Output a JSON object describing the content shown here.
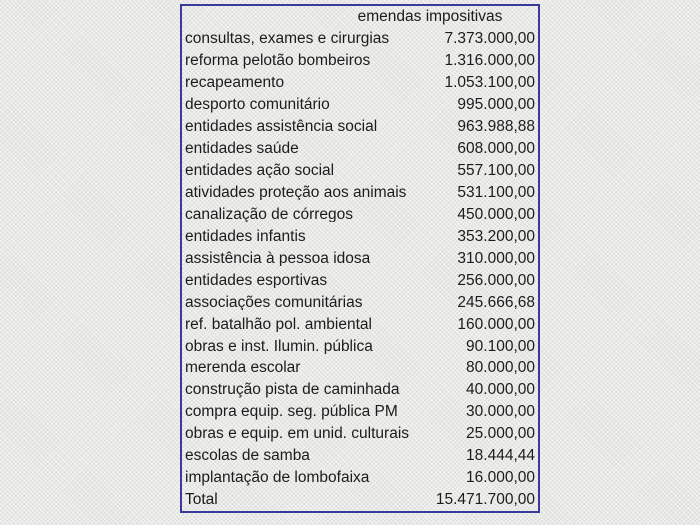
{
  "table": {
    "header": "emendas impositivas",
    "rows": [
      {
        "label": "consultas, exames e cirurgias",
        "value": "7.373.000,00"
      },
      {
        "label": "reforma pelotão bombeiros",
        "value": "1.316.000,00"
      },
      {
        "label": "recapeamento",
        "value": "1.053.100,00"
      },
      {
        "label": "desporto comunitário",
        "value": "995.000,00"
      },
      {
        "label": "entidades assistência social",
        "value": "963.988,88"
      },
      {
        "label": "entidades saúde",
        "value": "608.000,00"
      },
      {
        "label": "entidades ação social",
        "value": "557.100,00"
      },
      {
        "label": "atividades proteção aos animais",
        "value": "531.100,00"
      },
      {
        "label": "canalização de córregos",
        "value": "450.000,00"
      },
      {
        "label": "entidades infantis",
        "value": "353.200,00"
      },
      {
        "label": "assistência à pessoa idosa",
        "value": "310.000,00"
      },
      {
        "label": "entidades esportivas",
        "value": "256.000,00"
      },
      {
        "label": "associações comunitárias",
        "value": "245.666,68"
      },
      {
        "label": "ref. batalhão pol. ambiental",
        "value": "160.000,00"
      },
      {
        "label": "obras e inst. Ilumin. pública",
        "value": "90.100,00"
      },
      {
        "label": "merenda escolar",
        "value": "80.000,00"
      },
      {
        "label": "construção pista de caminhada",
        "value": "40.000,00"
      },
      {
        "label": "compra equip. seg. pública PM",
        "value": "30.000,00"
      },
      {
        "label": "obras e equip. em unid. culturais",
        "value": "25.000,00"
      },
      {
        "label": "escolas de samba",
        "value": "18.444,44"
      },
      {
        "label": "implantação de lombofaixa",
        "value": "16.000,00"
      },
      {
        "label": "Total",
        "value": "15.471.700,00"
      }
    ]
  },
  "colors": {
    "background": "#e9e9e7",
    "border": "#3a3a9c",
    "text": "#1c1c1c"
  },
  "chart_data": {
    "type": "table",
    "title": "emendas impositivas",
    "categories": [
      "consultas, exames e cirurgias",
      "reforma pelotão bombeiros",
      "recapeamento",
      "desporto comunitário",
      "entidades assistência social",
      "entidades saúde",
      "entidades ação social",
      "atividades proteção aos animais",
      "canalização de córregos",
      "entidades infantis",
      "assistência à pessoa idosa",
      "entidades esportivas",
      "associações comunitárias",
      "ref. batalhão pol. ambiental",
      "obras e inst. Ilumin. pública",
      "merenda escolar",
      "construção pista de caminhada",
      "compra equip. seg. pública PM",
      "obras e equip. em unid. culturais",
      "escolas de samba",
      "implantação de lombofaixa"
    ],
    "values": [
      7373000.0,
      1316000.0,
      1053100.0,
      995000.0,
      963988.88,
      608000.0,
      557100.0,
      531100.0,
      450000.0,
      353200.0,
      310000.0,
      256000.0,
      245666.68,
      160000.0,
      90100.0,
      80000.0,
      40000.0,
      30000.0,
      25000.0,
      18444.44,
      16000.0
    ],
    "total": 15471700.0,
    "number_format": "pt-BR",
    "layout_hints": {
      "value_alignment": "right",
      "label_alignment": "left",
      "header_position": "centered-over-value-column",
      "grid": "outer-border-only"
    }
  }
}
